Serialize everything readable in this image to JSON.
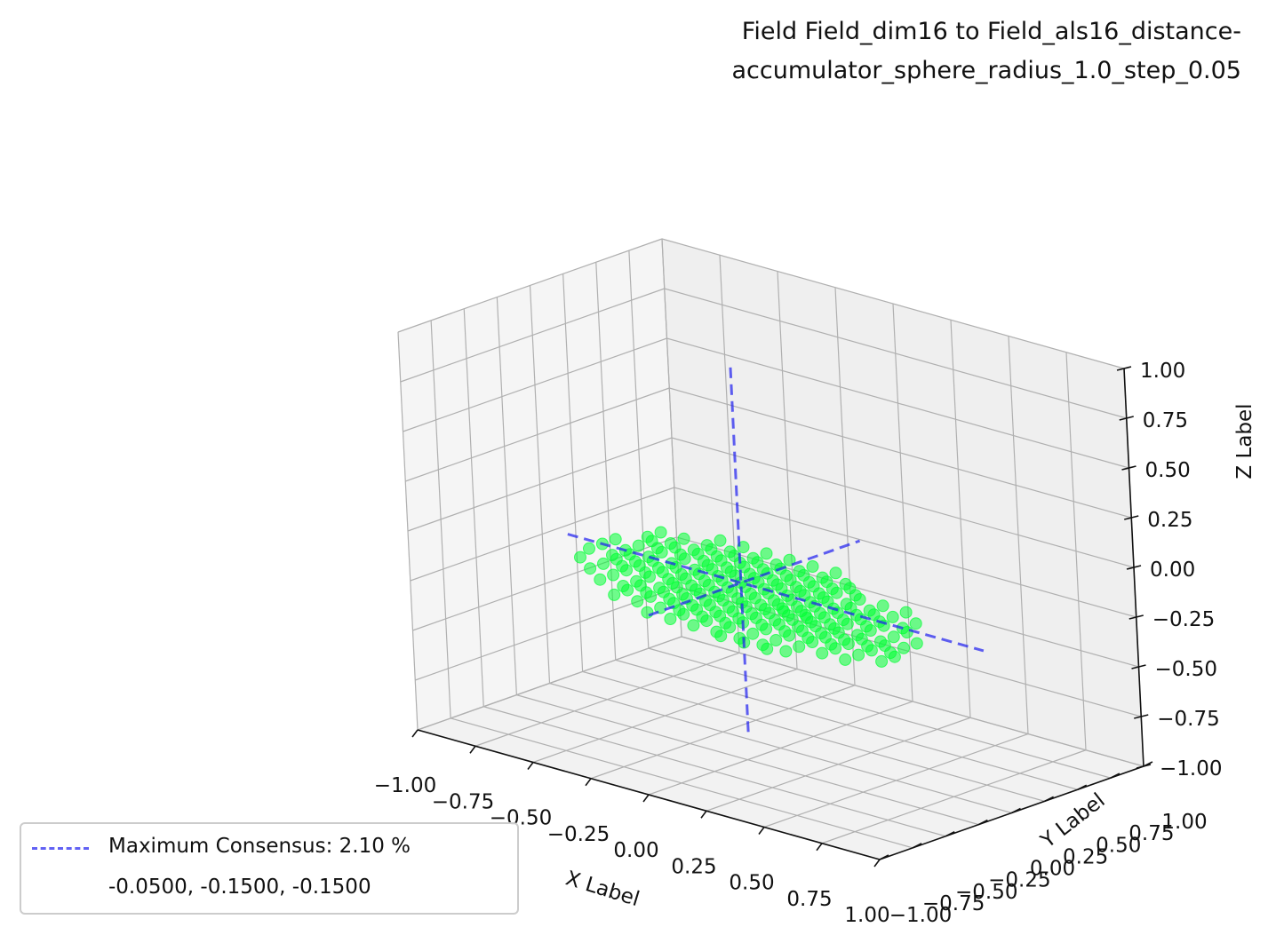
{
  "title": {
    "line1": "Field Field_dim16 to Field_als16_distance-",
    "line2": "accumulator_sphere_radius_1.0_step_0.05"
  },
  "axes": {
    "x_label": "X Label",
    "y_label": "Y Label",
    "z_label": "Z Label",
    "x_ticks": [
      "−1.00",
      "−0.75",
      "−0.50",
      "−0.25",
      "0.00",
      "0.25",
      "0.50",
      "0.75",
      "1.00"
    ],
    "y_ticks": [
      "−1.00",
      "−0.75",
      "−0.50",
      "−0.25",
      "0.00",
      "0.25",
      "0.50",
      "0.75",
      "1.00"
    ],
    "z_ticks": [
      "−1.00",
      "−0.75",
      "−0.50",
      "−0.25",
      "0.00",
      "0.25",
      "0.50",
      "0.75",
      "1.00"
    ]
  },
  "legend": {
    "line1": "Maximum Consensus: 2.10 %",
    "line2": "-0.0500, -0.1500, -0.1500"
  },
  "colors": {
    "points": "#00ff33",
    "consensus_lines": "#1e1ef0",
    "pane": "#f2f2f2",
    "grid": "#b0b0b0"
  },
  "chart_data": {
    "type": "scatter",
    "projection": "3d",
    "xlim": [
      -1.0,
      1.0
    ],
    "ylim": [
      -1.0,
      1.0
    ],
    "zlim": [
      -1.0,
      1.0
    ],
    "grid": true,
    "legend_position": "lower-left",
    "point_cloud": {
      "description_visible": "dense ellipsoid of accumulator points",
      "x_range": [
        -0.75,
        0.7
      ],
      "y_range": [
        -0.45,
        0.2
      ],
      "z_range": [
        -0.45,
        0.0
      ],
      "step": 0.05
    },
    "maximum_consensus": {
      "percent": 2.1,
      "point": [
        -0.05,
        -0.15,
        -0.15
      ]
    }
  }
}
